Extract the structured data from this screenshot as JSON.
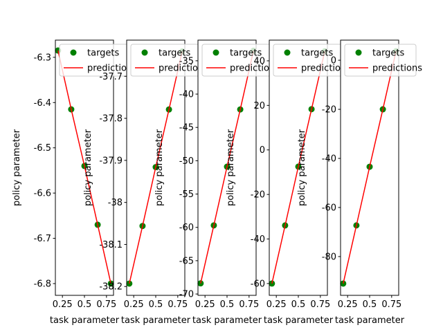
{
  "chart_data": [
    {
      "type": "line",
      "x_label": "task parameter",
      "y_label": "policy parameter",
      "x": [
        0.2,
        0.35,
        0.5,
        0.65,
        0.8
      ],
      "xlim": [
        0.17,
        0.83
      ],
      "xticks": [
        0.25,
        0.5,
        0.75
      ],
      "ylim": [
        -6.826,
        -6.262
      ],
      "yticks": [
        -6.3,
        -6.4,
        -6.5,
        -6.6,
        -6.7,
        -6.8
      ],
      "legend": "upper left",
      "series": [
        {
          "name": "targets",
          "color": "#008000",
          "style": "markers",
          "values": [
            -6.285,
            -6.415,
            -6.54,
            -6.67,
            -6.8
          ]
        },
        {
          "name": "predictions",
          "color": "#ff0000",
          "style": "line",
          "values": [
            -6.285,
            -6.415,
            -6.54,
            -6.67,
            -6.8
          ]
        }
      ]
    },
    {
      "type": "line",
      "x_label": "task parameter",
      "y_label": "policy parameter",
      "x": [
        0.2,
        0.35,
        0.5,
        0.65,
        0.8
      ],
      "xlim": [
        0.17,
        0.83
      ],
      "xticks": [
        0.25,
        0.5,
        0.75
      ],
      "ylim": [
        -38.221,
        -37.614
      ],
      "yticks": [
        -37.7,
        -37.8,
        -37.9,
        -38.0,
        -38.1,
        -38.2
      ],
      "legend": "upper left",
      "series": [
        {
          "name": "targets",
          "color": "#008000",
          "style": "markers",
          "values": [
            -38.193,
            -38.056,
            -37.916,
            -37.779,
            -37.641
          ]
        },
        {
          "name": "predictions",
          "color": "#ff0000",
          "style": "line",
          "values": [
            -38.193,
            -38.056,
            -37.916,
            -37.779,
            -37.641
          ]
        }
      ]
    },
    {
      "type": "line",
      "x_label": "task parameter",
      "y_label": "policy parameter",
      "x": [
        0.2,
        0.35,
        0.5,
        0.65,
        0.8
      ],
      "xlim": [
        0.17,
        0.83
      ],
      "xticks": [
        0.25,
        0.5,
        0.75
      ],
      "ylim": [
        -70.2,
        -31.9
      ],
      "yticks": [
        -35,
        -40,
        -45,
        -50,
        -55,
        -60,
        -65,
        -70
      ],
      "legend": "upper left",
      "series": [
        {
          "name": "targets",
          "color": "#008000",
          "style": "markers",
          "values": [
            -68.4,
            -59.7,
            -50.9,
            -42.3,
            -33.5
          ]
        },
        {
          "name": "predictions",
          "color": "#ff0000",
          "style": "line",
          "values": [
            -68.4,
            -59.7,
            -50.9,
            -42.3,
            -33.5
          ]
        }
      ]
    },
    {
      "type": "line",
      "x_label": "task parameter",
      "y_label": "policy parameter",
      "x": [
        0.2,
        0.35,
        0.5,
        0.65,
        0.8
      ],
      "xlim": [
        0.17,
        0.83
      ],
      "xticks": [
        0.25,
        0.5,
        0.75
      ],
      "ylim": [
        -65.3,
        49.3
      ],
      "yticks": [
        40,
        20,
        0,
        -20,
        -40,
        -60
      ],
      "legend": "upper left",
      "series": [
        {
          "name": "targets",
          "color": "#008000",
          "style": "markers",
          "values": [
            -60,
            -33.9,
            -7.5,
            18.3,
            44.3
          ]
        },
        {
          "name": "predictions",
          "color": "#ff0000",
          "style": "line",
          "values": [
            -60,
            -33.9,
            -7.5,
            18.3,
            44.3
          ]
        }
      ]
    },
    {
      "type": "line",
      "x_label": "task parameter",
      "y_label": "policy parameter",
      "x": [
        0.2,
        0.35,
        0.5,
        0.65,
        0.8
      ],
      "xlim": [
        0.17,
        0.83
      ],
      "xticks": [
        0.25,
        0.5,
        0.75
      ],
      "ylim": [
        -95.8,
        8.2
      ],
      "yticks": [
        0,
        -20,
        -40,
        -60,
        -80
      ],
      "legend": "upper left",
      "series": [
        {
          "name": "targets",
          "color": "#008000",
          "style": "markers",
          "values": [
            -91,
            -67.3,
            -43.4,
            -20,
            3.7
          ]
        },
        {
          "name": "predictions",
          "color": "#ff0000",
          "style": "line",
          "values": [
            -91,
            -67.3,
            -43.4,
            -20,
            3.7
          ]
        }
      ]
    }
  ]
}
